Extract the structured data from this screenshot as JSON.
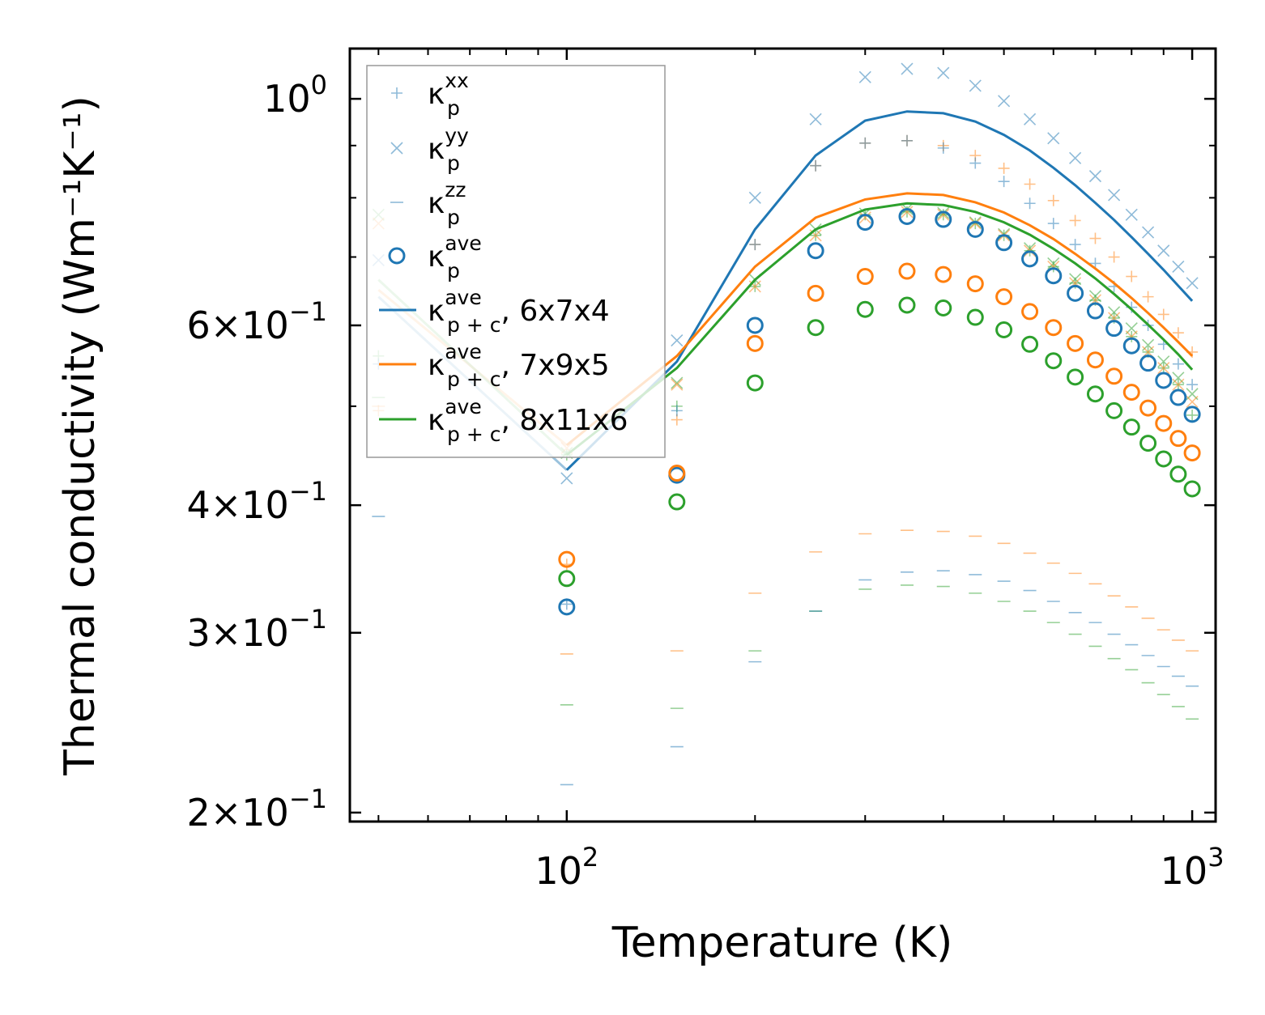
{
  "chart_data": {
    "type": "scatter",
    "title": "",
    "xlabel": "Temperature (K)",
    "ylabel": "Thermal conductivity (Wm⁻¹K⁻¹)",
    "xscale": "log",
    "yscale": "log",
    "xlim": [
      45,
      1090
    ],
    "ylim": [
      0.196,
      1.12
    ],
    "x_ticks": [
      {
        "value": 100,
        "base": "10",
        "exp": "2"
      },
      {
        "value": 1000,
        "base": "10",
        "exp": "3"
      }
    ],
    "y_ticks": [
      {
        "value": 1.0,
        "mant": "",
        "base": "10",
        "exp": "0"
      },
      {
        "value": 0.6,
        "mant": "6",
        "base": "10",
        "exp": "−1"
      },
      {
        "value": 0.4,
        "mant": "4",
        "base": "10",
        "exp": "−1"
      },
      {
        "value": 0.3,
        "mant": "3",
        "base": "10",
        "exp": "−1"
      },
      {
        "value": 0.2,
        "mant": "2",
        "base": "10",
        "exp": "−1"
      }
    ],
    "legend_position": "upper-left",
    "colors": {
      "blue": "#1f77b4",
      "orange": "#ff7f0e",
      "green": "#2ca02c"
    },
    "x": [
      50,
      100,
      150,
      200,
      250,
      300,
      350,
      400,
      450,
      500,
      550,
      600,
      650,
      700,
      750,
      800,
      850,
      900,
      950,
      1000
    ],
    "meshes": [
      {
        "name": "6x7x4",
        "color": "#1f77b4",
        "kxx": [
          0.55,
          0.32,
          0.495,
          0.72,
          0.86,
          0.905,
          0.91,
          0.895,
          0.865,
          0.83,
          0.79,
          0.755,
          0.72,
          0.69,
          0.655,
          0.625,
          0.6,
          0.575,
          0.55,
          0.525
        ],
        "kyy": [
          0.695,
          0.425,
          0.58,
          0.8,
          0.955,
          1.05,
          1.07,
          1.06,
          1.03,
          0.995,
          0.955,
          0.915,
          0.875,
          0.84,
          0.805,
          0.77,
          0.74,
          0.71,
          0.685,
          0.66
        ],
        "kzz": [
          0.39,
          0.213,
          0.232,
          0.281,
          0.315,
          0.338,
          0.344,
          0.345,
          0.342,
          0.337,
          0.33,
          0.322,
          0.314,
          0.307,
          0.299,
          0.292,
          0.285,
          0.278,
          0.272,
          0.266
        ],
        "kave_p": [
          null,
          0.318,
          0.428,
          0.6,
          0.71,
          0.757,
          0.767,
          0.762,
          0.745,
          0.723,
          0.697,
          0.671,
          0.645,
          0.62,
          0.596,
          0.573,
          0.551,
          0.53,
          0.51,
          0.491
        ],
        "kave_pc": [
          0.64,
          0.433,
          0.553,
          0.745,
          0.88,
          0.952,
          0.972,
          0.968,
          0.95,
          0.922,
          0.89,
          0.856,
          0.823,
          0.791,
          0.761,
          0.732,
          0.705,
          0.68,
          0.656,
          0.634
        ]
      },
      {
        "name": "7x9x5",
        "color": "#ff7f0e",
        "kxx": [
          0.495,
          0.35,
          0.485,
          0.72,
          0.86,
          0.905,
          0.91,
          0.9,
          0.88,
          0.855,
          0.825,
          0.795,
          0.76,
          0.73,
          0.7,
          0.67,
          0.64,
          0.615,
          0.59,
          0.565
        ],
        "kyy": [
          0.755,
          0.455,
          0.525,
          0.655,
          0.735,
          0.765,
          0.775,
          0.77,
          0.755,
          0.735,
          0.71,
          0.685,
          0.66,
          0.635,
          0.61,
          0.585,
          0.565,
          0.545,
          0.525,
          0.505
        ],
        "kzz": [
          0.5,
          0.286,
          0.288,
          0.328,
          0.36,
          0.375,
          0.378,
          0.377,
          0.373,
          0.367,
          0.359,
          0.351,
          0.343,
          0.335,
          0.326,
          0.318,
          0.31,
          0.302,
          0.295,
          0.288
        ],
        "kave_p": [
          null,
          0.354,
          0.43,
          0.576,
          0.645,
          0.67,
          0.678,
          0.673,
          0.659,
          0.64,
          0.619,
          0.597,
          0.576,
          0.555,
          0.535,
          0.516,
          0.498,
          0.481,
          0.465,
          0.45
        ],
        "kave_pc": [
          0.65,
          0.458,
          0.56,
          0.685,
          0.765,
          0.797,
          0.808,
          0.805,
          0.792,
          0.774,
          0.752,
          0.729,
          0.705,
          0.682,
          0.66,
          0.638,
          0.617,
          0.597,
          0.578,
          0.56
        ]
      },
      {
        "name": "8x11x6",
        "color": "#2ca02c",
        "kxx": [
          0.56,
          0.448,
          0.5,
          0.655,
          0.735,
          0.77,
          0.775,
          0.77,
          0.755,
          0.735,
          0.71,
          0.685,
          0.66,
          0.635,
          0.61,
          0.585,
          0.565,
          0.545,
          0.525,
          0.49
        ],
        "kyy": [
          0.77,
          0.45,
          0.527,
          0.665,
          0.745,
          0.772,
          0.78,
          0.773,
          0.757,
          0.737,
          0.714,
          0.69,
          0.666,
          0.641,
          0.618,
          0.596,
          0.574,
          0.553,
          0.533,
          0.514
        ],
        "kzz": [
          0.51,
          0.255,
          0.253,
          0.288,
          0.315,
          0.331,
          0.334,
          0.333,
          0.328,
          0.322,
          0.315,
          0.307,
          0.299,
          0.291,
          0.283,
          0.276,
          0.268,
          0.261,
          0.254,
          0.247
        ],
        "kave_p": [
          null,
          0.339,
          0.403,
          0.527,
          0.597,
          0.622,
          0.628,
          0.624,
          0.611,
          0.594,
          0.575,
          0.554,
          0.534,
          0.514,
          0.495,
          0.477,
          0.46,
          0.444,
          0.429,
          0.415
        ],
        "kave_pc": [
          0.665,
          0.448,
          0.545,
          0.665,
          0.745,
          0.779,
          0.79,
          0.787,
          0.775,
          0.757,
          0.736,
          0.713,
          0.69,
          0.667,
          0.644,
          0.622,
          0.601,
          0.581,
          0.562,
          0.543
        ]
      }
    ],
    "legend": [
      {
        "kind": "plus",
        "color": "#1f77b4",
        "sym": "κ",
        "sub": "p",
        "sup": "xx",
        "suffix": ""
      },
      {
        "kind": "cross",
        "color": "#1f77b4",
        "sym": "κ",
        "sub": "p",
        "sup": "yy",
        "suffix": ""
      },
      {
        "kind": "dash",
        "color": "#1f77b4",
        "sym": "κ",
        "sub": "p",
        "sup": "zz",
        "suffix": ""
      },
      {
        "kind": "circle",
        "color": "#1f77b4",
        "sym": "κ",
        "sub": "p",
        "sup": "ave",
        "suffix": ""
      },
      {
        "kind": "line",
        "color": "#1f77b4",
        "sym": "κ",
        "sub": "p + c",
        "sup": "ave",
        "suffix": ", 6x7x4"
      },
      {
        "kind": "line",
        "color": "#ff7f0e",
        "sym": "κ",
        "sub": "p + c",
        "sup": "ave",
        "suffix": ", 7x9x5"
      },
      {
        "kind": "line",
        "color": "#2ca02c",
        "sym": "κ",
        "sub": "p + c",
        "sup": "ave",
        "suffix": ", 8x11x6"
      }
    ]
  }
}
